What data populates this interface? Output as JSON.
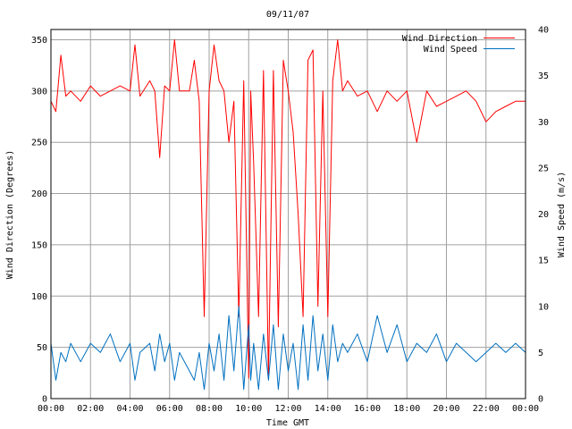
{
  "chart_data": {
    "type": "line",
    "title": "09/11/07",
    "xlabel": "Time GMT",
    "ylabel_left": "Wind Direction (Degrees)",
    "ylabel_right": "Wind Speed (m/s)",
    "xlim": [
      0,
      24
    ],
    "ylim_left": [
      0,
      360
    ],
    "ylim_right": [
      0,
      40
    ],
    "grid": true,
    "legend_position": "top-right",
    "x_ticks": [
      "00:00",
      "02:00",
      "04:00",
      "06:00",
      "08:00",
      "10:00",
      "12:00",
      "14:00",
      "16:00",
      "18:00",
      "20:00",
      "22:00",
      "00:00"
    ],
    "y_ticks_left": [
      "0",
      "50",
      "100",
      "150",
      "200",
      "250",
      "300",
      "350"
    ],
    "y_ticks_right": [
      "0",
      "5",
      "10",
      "15",
      "20",
      "25",
      "30",
      "35",
      "40"
    ],
    "series": [
      {
        "name": "Wind Direction",
        "axis": "left",
        "color": "#ff0000",
        "x": [
          0,
          0.25,
          0.5,
          0.75,
          1,
          1.5,
          2,
          2.5,
          3,
          3.5,
          4,
          4.25,
          4.5,
          5,
          5.25,
          5.5,
          5.75,
          6,
          6.25,
          6.5,
          7,
          7.25,
          7.5,
          7.75,
          8,
          8.25,
          8.5,
          8.75,
          9,
          9.25,
          9.5,
          9.75,
          10,
          10.1,
          10.25,
          10.5,
          10.75,
          11,
          11.25,
          11.5,
          11.75,
          12,
          12.25,
          12.5,
          12.75,
          13,
          13.25,
          13.5,
          13.75,
          14,
          14.25,
          14.5,
          14.75,
          15,
          15.5,
          16,
          16.5,
          17,
          17.5,
          18,
          18.5,
          19,
          19.5,
          20,
          20.5,
          21,
          21.5,
          22,
          22.5,
          23,
          23.5,
          24
        ],
        "values": [
          290,
          280,
          335,
          295,
          300,
          290,
          305,
          295,
          300,
          305,
          300,
          345,
          295,
          310,
          300,
          235,
          305,
          300,
          350,
          300,
          300,
          330,
          290,
          80,
          300,
          345,
          310,
          300,
          250,
          290,
          80,
          310,
          20,
          300,
          230,
          80,
          320,
          20,
          320,
          70,
          330,
          300,
          260,
          180,
          80,
          330,
          340,
          90,
          300,
          80,
          310,
          350,
          300,
          310,
          295,
          300,
          280,
          300,
          290,
          300,
          250,
          300,
          285,
          290,
          295,
          300,
          290,
          270,
          280,
          285,
          290,
          290
        ]
      },
      {
        "name": "Wind Speed",
        "axis": "right",
        "color": "#0070c0",
        "x": [
          0,
          0.25,
          0.5,
          0.75,
          1,
          1.5,
          2,
          2.5,
          3,
          3.5,
          4,
          4.25,
          4.5,
          5,
          5.25,
          5.5,
          5.75,
          6,
          6.25,
          6.5,
          7,
          7.25,
          7.5,
          7.75,
          8,
          8.25,
          8.5,
          8.75,
          9,
          9.25,
          9.5,
          9.75,
          10,
          10.1,
          10.25,
          10.5,
          10.75,
          11,
          11.25,
          11.5,
          11.75,
          12,
          12.25,
          12.5,
          12.75,
          13,
          13.25,
          13.5,
          13.75,
          14,
          14.25,
          14.5,
          14.75,
          15,
          15.5,
          16,
          16.5,
          17,
          17.5,
          18,
          18.5,
          19,
          19.5,
          20,
          20.5,
          21,
          21.5,
          22,
          22.5,
          23,
          23.5,
          24
        ],
        "values": [
          6,
          2,
          5,
          4,
          6,
          4,
          6,
          5,
          7,
          4,
          6,
          2,
          5,
          6,
          3,
          7,
          4,
          6,
          2,
          5,
          3,
          2,
          5,
          1,
          6,
          3,
          7,
          2,
          9,
          3,
          10,
          1,
          8,
          2,
          6,
          1,
          7,
          2,
          8,
          1,
          7,
          3,
          6,
          1,
          8,
          2,
          9,
          3,
          7,
          2,
          8,
          4,
          6,
          5,
          7,
          4,
          9,
          5,
          8,
          4,
          6,
          5,
          7,
          4,
          6,
          5,
          4,
          5,
          6,
          5,
          6,
          5
        ]
      }
    ]
  }
}
